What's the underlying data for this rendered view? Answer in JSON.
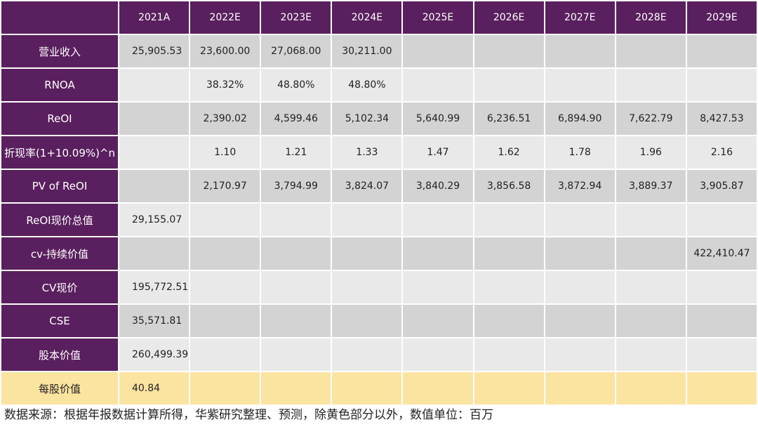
{
  "table": {
    "columns": [
      "2021A",
      "2022E",
      "2023E",
      "2024E",
      "2025E",
      "2026E",
      "2027E",
      "2028E",
      "2029E"
    ],
    "rows": [
      {
        "label": "营业收入",
        "cells": [
          "25,905.53",
          "23,600.00",
          "27,068.00",
          "30,211.00",
          null,
          null,
          null,
          null,
          null
        ]
      },
      {
        "label": "RNOA",
        "cells": [
          null,
          "38.32%",
          "48.80%",
          "48.80%",
          null,
          null,
          null,
          null,
          null
        ]
      },
      {
        "label": "ReOI",
        "cells": [
          null,
          "2,390.02",
          "4,599.46",
          "5,102.34",
          "5,640.99",
          "6,236.51",
          "6,894.90",
          "7,622.79",
          "8,427.53"
        ]
      },
      {
        "label": "折现率(1+10.09%)^n",
        "cells": [
          null,
          "1.10",
          "1.21",
          "1.33",
          "1.47",
          "1.62",
          "1.78",
          "1.96",
          "2.16"
        ]
      },
      {
        "label": "PV of ReOI",
        "cells": [
          null,
          "2,170.97",
          "3,794.99",
          "3,824.07",
          "3,840.29",
          "3,856.58",
          "3,872.94",
          "3,889.37",
          "3,905.87"
        ]
      },
      {
        "label": "ReOI现价总值",
        "cells": [
          "29,155.07",
          null,
          null,
          null,
          null,
          null,
          null,
          null,
          null
        ]
      },
      {
        "label": "cv-持续价值",
        "cells": [
          null,
          null,
          null,
          null,
          null,
          null,
          null,
          null,
          "422,410.47"
        ]
      },
      {
        "label": "CV现价",
        "cells": [
          "195,772.51",
          null,
          null,
          null,
          null,
          null,
          null,
          null,
          null
        ]
      },
      {
        "label": "CSE",
        "cells": [
          "35,571.81",
          null,
          null,
          null,
          null,
          null,
          null,
          null,
          null
        ]
      },
      {
        "label": "股本价值",
        "cells": [
          "260,499.39",
          null,
          null,
          null,
          null,
          null,
          null,
          null,
          null
        ]
      },
      {
        "label": "每股价值",
        "cells": [
          "40.84",
          null,
          null,
          null,
          null,
          null,
          null,
          null,
          null
        ]
      }
    ]
  },
  "footer": "数据来源：根据年报数据计算所得，华紫研究整理、预测，除黄色部分以外，数值单位：百万"
}
